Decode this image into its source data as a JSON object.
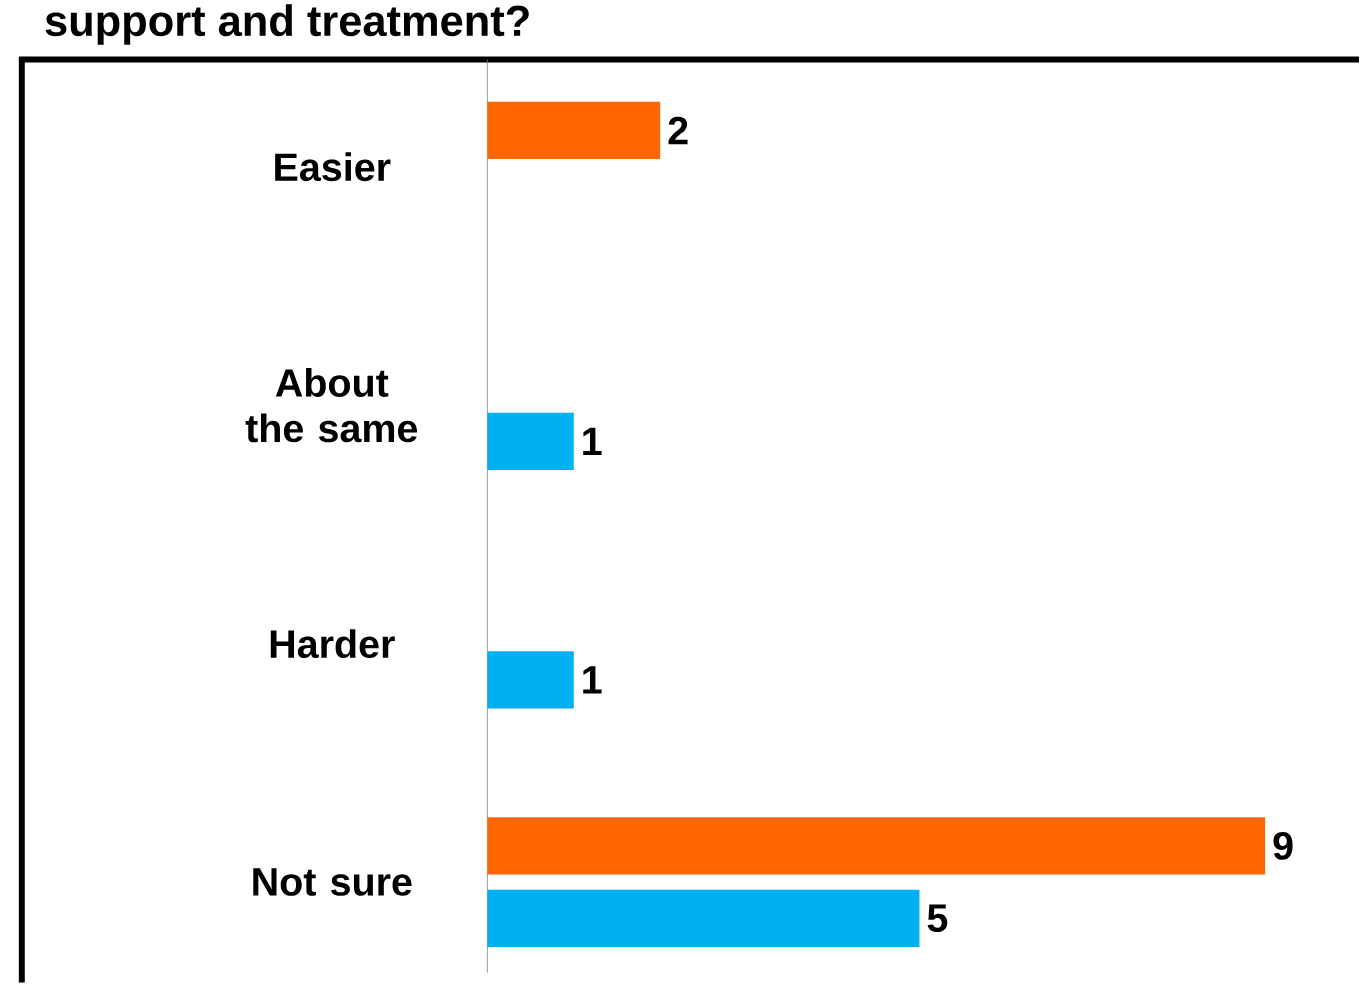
{
  "chart_data": {
    "type": "bar",
    "orientation": "horizontal",
    "title": "support and treatment?",
    "categories": [
      "Easier",
      "About the same",
      "Harder",
      "Not sure"
    ],
    "series": [
      {
        "color": "#ff6600",
        "values": [
          2,
          null,
          null,
          9
        ]
      },
      {
        "color": "#00b0f0",
        "values": [
          null,
          1,
          1,
          5
        ]
      }
    ],
    "data_labels": true
  }
}
